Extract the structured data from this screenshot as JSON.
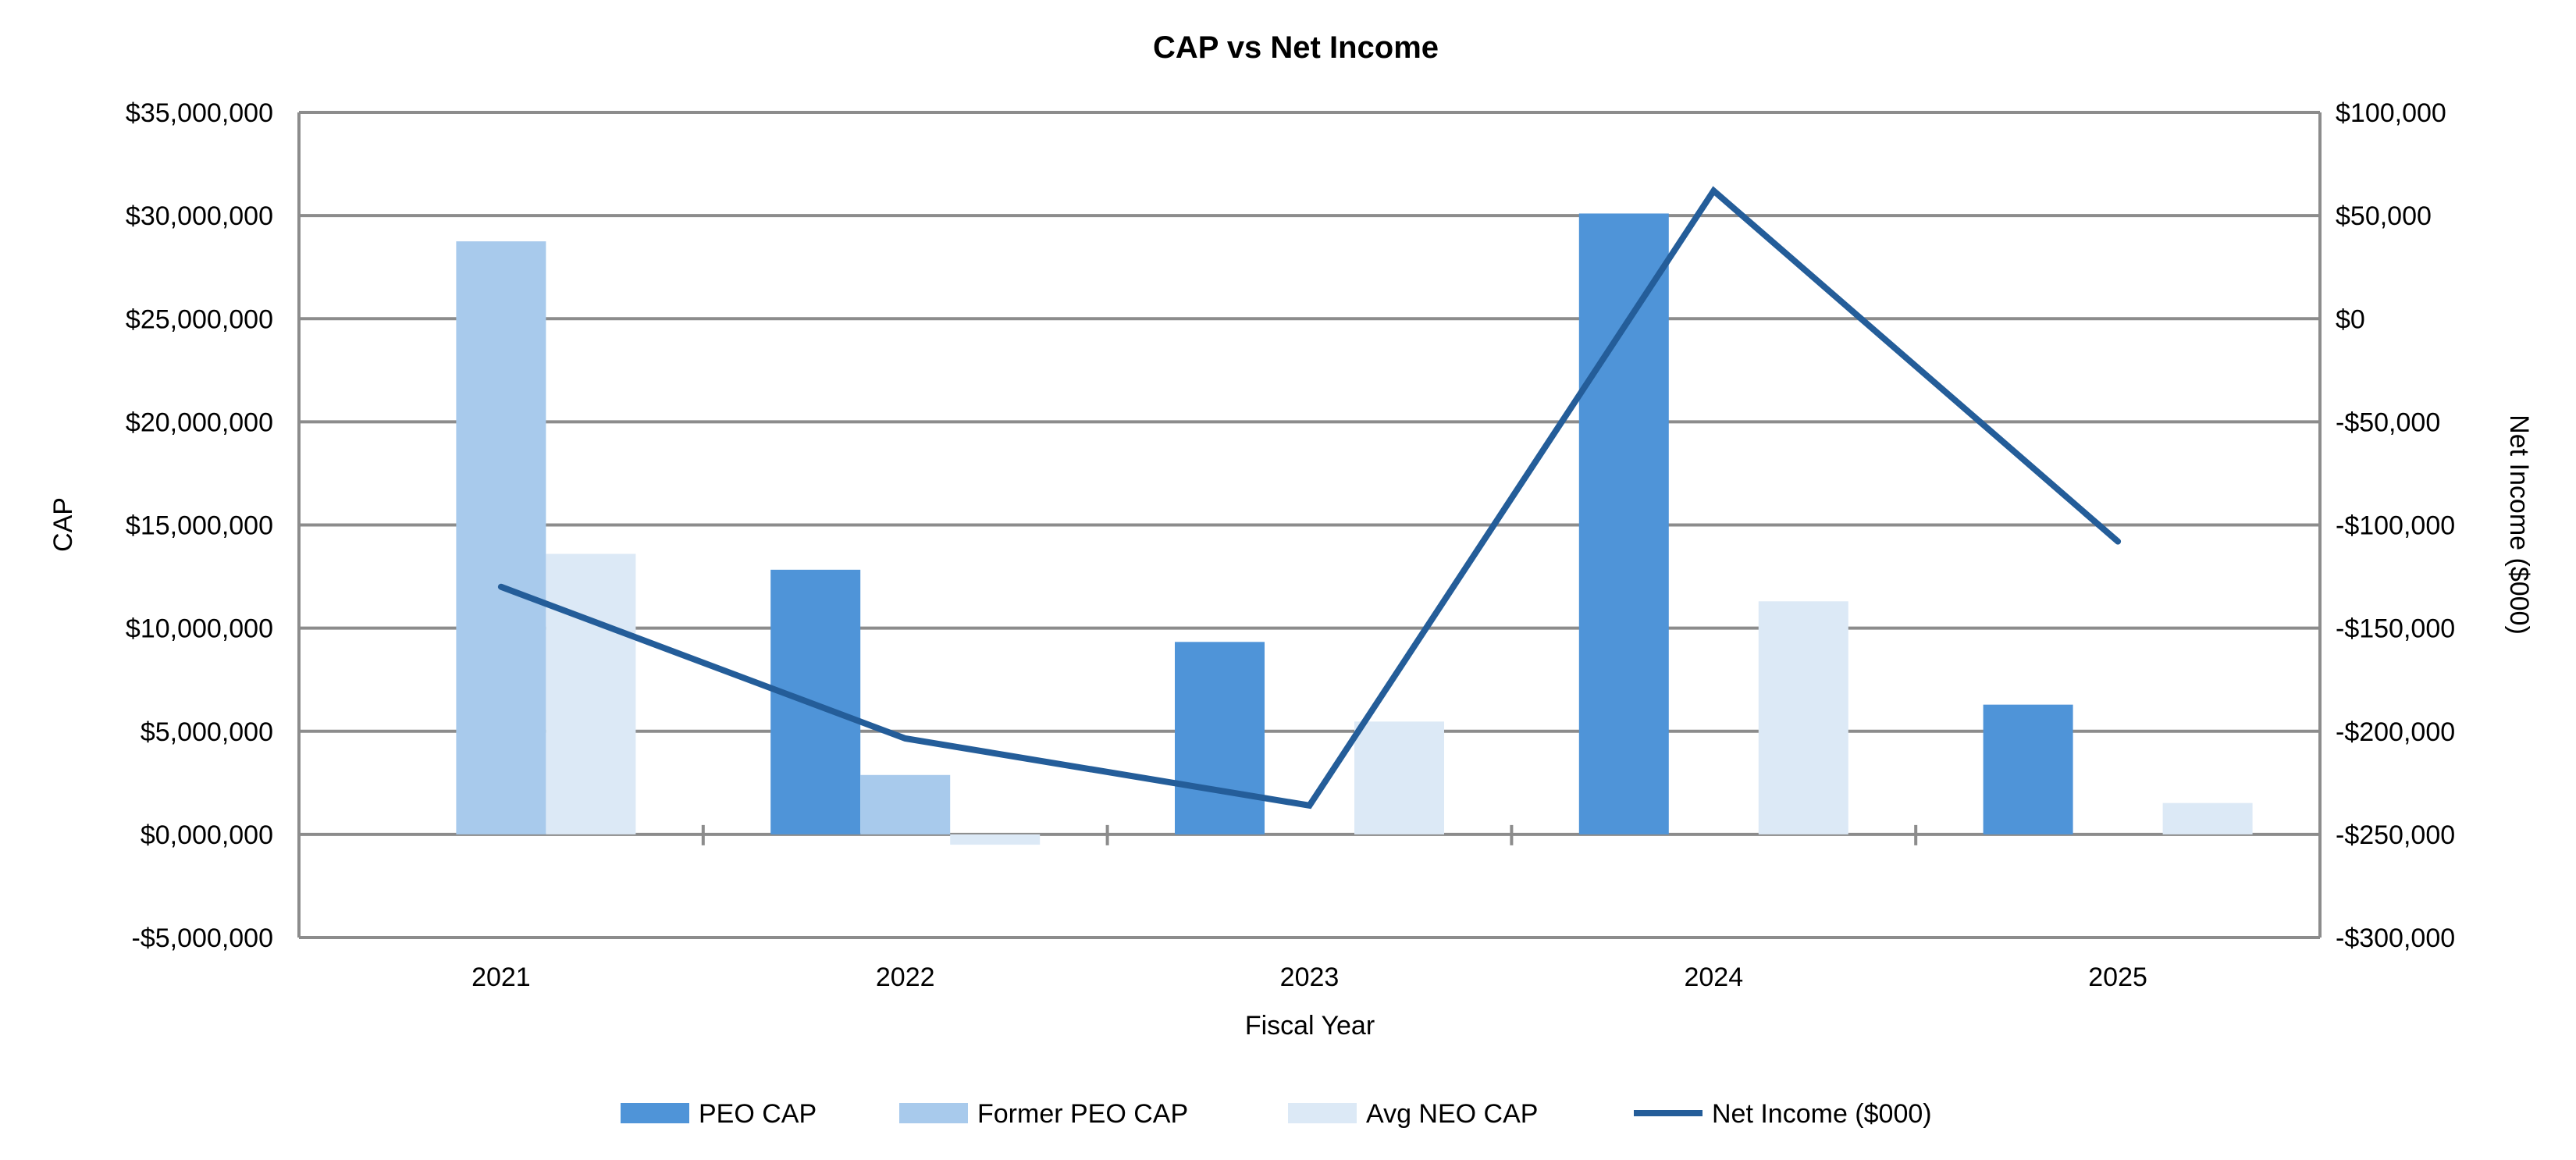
{
  "chart_data": {
    "type": "bar+line",
    "title": "CAP vs Net Income",
    "xlabel": "Fiscal Year",
    "ylabel": "CAP",
    "y2label": "Net Income ($000)",
    "categories": [
      "2021",
      "2022",
      "2023",
      "2024",
      "2025"
    ],
    "ylim": [
      -5000000,
      35000000
    ],
    "y_ticks": [
      -5000000,
      0,
      5000000,
      10000000,
      15000000,
      20000000,
      25000000,
      30000000,
      35000000
    ],
    "y_tick_labels": [
      "-$5,000,000",
      "$0,000,000",
      "$5,000,000",
      "$10,000,000",
      "$15,000,000",
      "$20,000,000",
      "$25,000,000",
      "$30,000,000",
      "$35,000,000"
    ],
    "y2lim": [
      -300000,
      100000
    ],
    "y2_ticks": [
      -300000,
      -250000,
      -200000,
      -150000,
      -100000,
      -50000,
      0,
      50000,
      100000
    ],
    "y2_tick_labels": [
      "-$300,000",
      "-$250,000",
      "-$200,000",
      "-$150,000",
      "-$100,000",
      "-$50,000",
      "$0",
      "$50,000",
      "$100,000"
    ],
    "grid": true,
    "legend_position": "bottom",
    "series": [
      {
        "name": "PEO CAP",
        "type": "bar",
        "axis": "left",
        "color": "#4F94D8",
        "values": [
          null,
          12830000,
          9330000,
          30100000,
          6290000
        ]
      },
      {
        "name": "Former PEO CAP",
        "type": "bar",
        "axis": "left",
        "color": "#A8CAEC",
        "values": [
          28750000,
          2880000,
          null,
          null,
          null
        ]
      },
      {
        "name": "Avg NEO CAP",
        "type": "bar",
        "axis": "left",
        "color": "#DCE9F6",
        "values": [
          13600000,
          -500000,
          5470000,
          11300000,
          1520000
        ]
      },
      {
        "name": "Net Income ($000)",
        "type": "line",
        "axis": "right",
        "color": "#245D99",
        "values": [
          -130000,
          -203500,
          -236000,
          62000,
          -108000
        ]
      }
    ]
  }
}
